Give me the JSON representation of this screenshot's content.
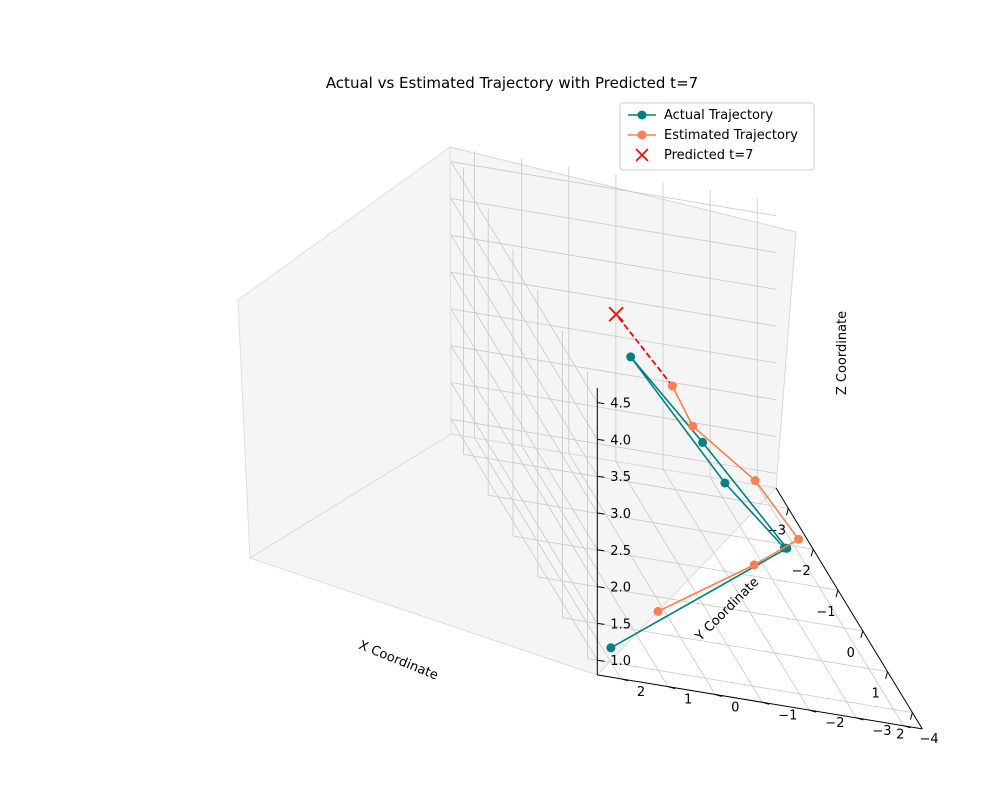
{
  "chart_data": {
    "type": "line3d",
    "title": "Actual vs Estimated Trajectory with Predicted t=7",
    "xlabel": "X Coordinate",
    "ylabel": "Y Coordinate",
    "zlabel": "Z Coordinate",
    "xticks": [
      "−3",
      "−2",
      "−1",
      "0",
      "1",
      "2"
    ],
    "yticks": [
      "−4",
      "−3",
      "−2",
      "−1",
      "0",
      "1",
      "2"
    ],
    "zticks": [
      "1.0",
      "1.5",
      "2.0",
      "2.5",
      "3.0",
      "3.5",
      "4.0",
      "4.5"
    ],
    "grid": true,
    "legend_position": "upper right",
    "series": [
      {
        "name": "Actual Trajectory",
        "color": "#008080",
        "marker": "circle",
        "points": [
          {
            "t": 1,
            "x": 2.0,
            "y": 2.0,
            "z": 1.0
          },
          {
            "t": 2,
            "x": 1.5,
            "y": -2.0,
            "z": 2.5
          },
          {
            "t": 3,
            "x": 0.0,
            "y": -1.0,
            "z": 3.0
          },
          {
            "t": 4,
            "x": -1.0,
            "y": 0.0,
            "z": 3.5
          },
          {
            "t": 5,
            "x": -1.0,
            "y": -2.0,
            "z": 2.0
          },
          {
            "t": 6,
            "x": -0.5,
            "y": -3.0,
            "z": 1.5
          }
        ]
      },
      {
        "name": "Estimated Trajectory",
        "color": "#ff7f50",
        "marker": "circle",
        "points": [
          {
            "t": 1,
            "x": 2.0,
            "y": 1.0,
            "z": 1.6
          },
          {
            "t": 2,
            "x": 1.7,
            "y": -1.2,
            "z": 2.3
          },
          {
            "t": 3,
            "x": 1.4,
            "y": -2.3,
            "z": 2.6
          },
          {
            "t": 4,
            "x": 0.6,
            "y": -1.8,
            "z": 2.9
          },
          {
            "t": 5,
            "x": -0.4,
            "y": -1.0,
            "z": 3.0
          },
          {
            "t": 6,
            "x": -1.6,
            "y": -1.2,
            "z": 2.9
          }
        ]
      },
      {
        "name": "Predicted t=7",
        "color": "#ff0000",
        "marker": "x",
        "points": [
          {
            "t": 7,
            "x": -3.3,
            "y": -0.9,
            "z": 2.9
          }
        ]
      }
    ],
    "connector": {
      "from_series": "Estimated Trajectory",
      "to_series": "Predicted t=7",
      "style": "dashed",
      "color": "#ff0000"
    }
  }
}
